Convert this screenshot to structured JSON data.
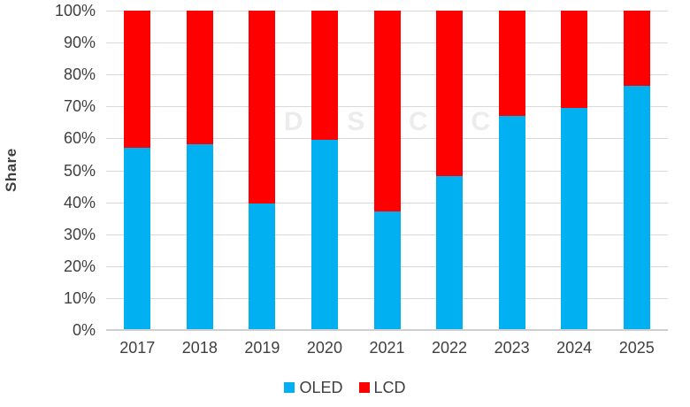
{
  "watermark": {
    "text": "DSCC"
  },
  "colors": {
    "oled": "#00B0F0",
    "lcd": "#FF0000",
    "gridline": "#D9D9D9",
    "axis_text": "#404040",
    "watermark": "#ECECEC"
  },
  "chart_data": {
    "type": "bar",
    "stacked": true,
    "stacked_100_percent": true,
    "title": "",
    "xlabel": "",
    "ylabel": "Share",
    "ylim": [
      0,
      100
    ],
    "grid": true,
    "legend_position": "bottom",
    "yticks": [
      "0%",
      "10%",
      "20%",
      "30%",
      "40%",
      "50%",
      "60%",
      "70%",
      "80%",
      "90%",
      "100%"
    ],
    "categories": [
      "2017",
      "2018",
      "2019",
      "2020",
      "2021",
      "2022",
      "2023",
      "2024",
      "2025"
    ],
    "series": [
      {
        "name": "OLED",
        "color": "#00B0F0",
        "values": [
          57,
          58,
          39.5,
          59.5,
          37,
          48,
          67,
          69.5,
          76.5
        ]
      },
      {
        "name": "LCD",
        "color": "#FF0000",
        "values": [
          43,
          42,
          60.5,
          40.5,
          63,
          52,
          33,
          30.5,
          23.5
        ]
      }
    ]
  }
}
